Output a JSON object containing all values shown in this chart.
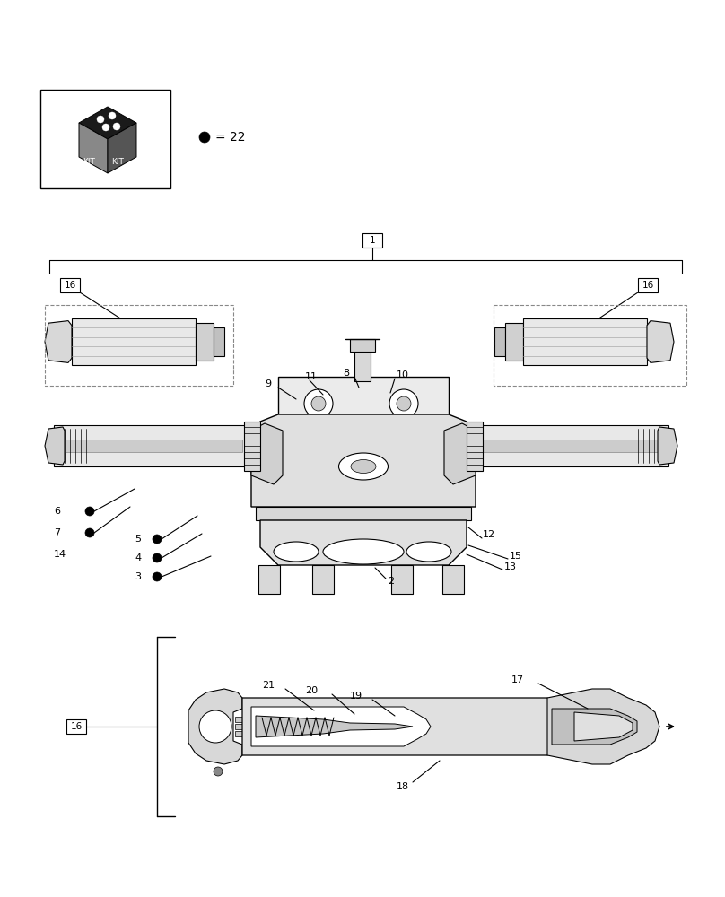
{
  "bg_color": "#ffffff",
  "lc": "#000000",
  "fig_width": 8.08,
  "fig_height": 10.0,
  "dpi": 100
}
